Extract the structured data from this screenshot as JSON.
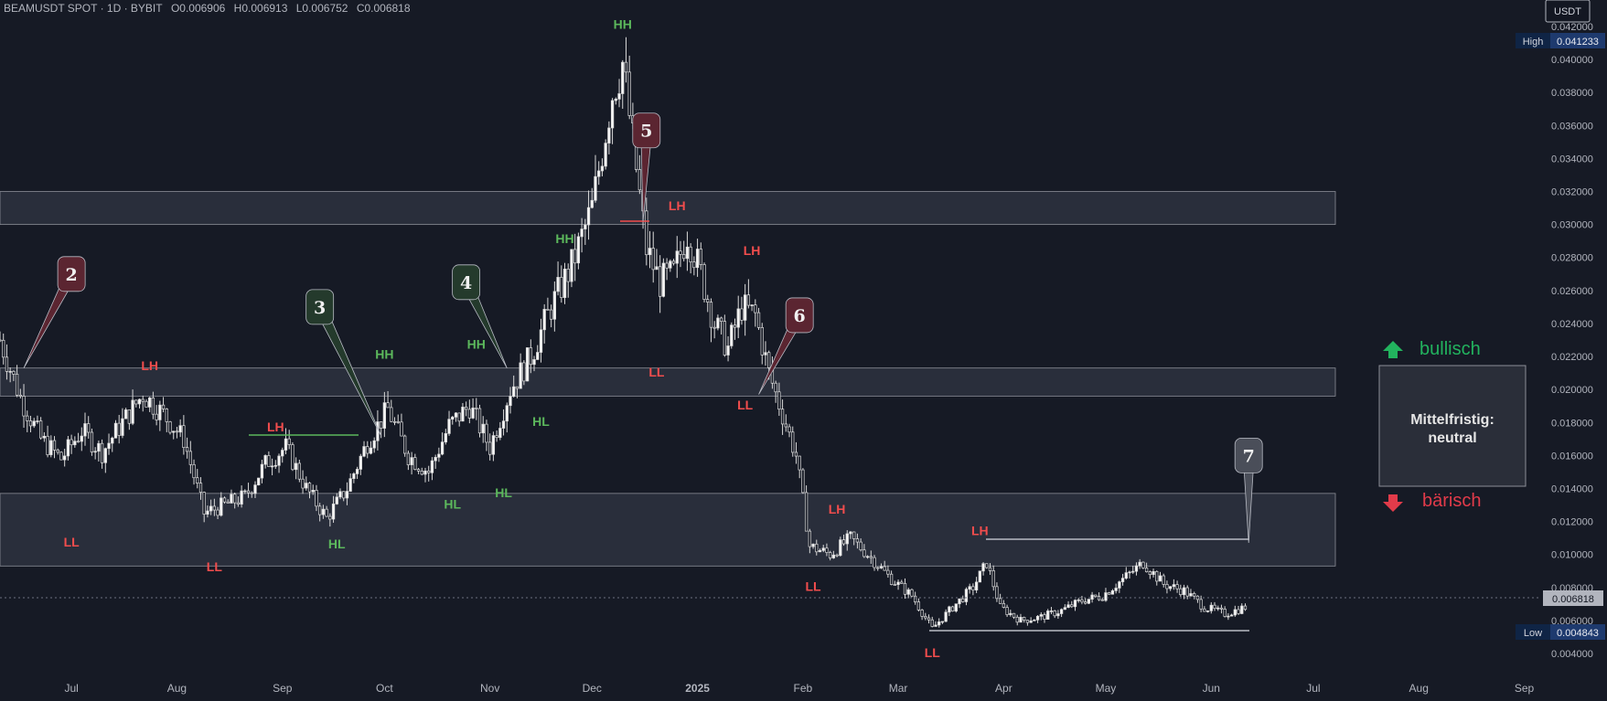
{
  "header": {
    "symbol": "BEAMUSDT SPOT · 1D · BYBIT",
    "open": "O0.006906",
    "high": "H0.006913",
    "low": "L0.006752",
    "close": "C0.006818"
  },
  "currency_label": "USDT",
  "price_badges": {
    "high_label": "High",
    "high_value": "0.041233",
    "low_label": "Low",
    "low_value": "0.004843",
    "last_value": "0.006818"
  },
  "legend_box": {
    "bullish_label": "bullisch",
    "bearish_label": "bärisch",
    "status": "Mittelfristig: neutral"
  },
  "colors": {
    "background": "#161a25",
    "candle": "#d9d9d9",
    "zone": "#3a3f4f",
    "higher_swing": "#5cb85c",
    "lower_swing": "#f24d4d",
    "callout_red": "#5b2531",
    "callout_green": "#243a2c",
    "callout_gray": "#4a4e59"
  },
  "chart_data": {
    "type": "candlestick",
    "title": "BEAMUSDT SPOT · 1D · BYBIT",
    "ylabel": "USDT",
    "ylim": [
      0.0035,
      0.0425
    ],
    "y_ticks": [
      "0.004000",
      "0.006000",
      "0.008000",
      "0.010000",
      "0.012000",
      "0.014000",
      "0.016000",
      "0.018000",
      "0.020000",
      "0.022000",
      "0.024000",
      "0.026000",
      "0.028000",
      "0.030000",
      "0.032000",
      "0.034000",
      "0.036000",
      "0.038000",
      "0.040000",
      "0.042000"
    ],
    "x_ticks": [
      "Jul",
      "Aug",
      "Sep",
      "Oct",
      "Nov",
      "Dec",
      "2025",
      "Feb",
      "Mar",
      "Apr",
      "May",
      "Jun",
      "Jul",
      "Aug",
      "Sep"
    ],
    "x_range": [
      "2024-06-10",
      "2025-09-10"
    ],
    "series": [
      {
        "name": "BEAMUSDT",
        "x": [
          "2024-06-10",
          "2024-06-16",
          "2024-06-22",
          "2024-06-28",
          "2024-07-04",
          "2024-07-10",
          "2024-07-16",
          "2024-07-22",
          "2024-07-28",
          "2024-08-03",
          "2024-08-09",
          "2024-08-15",
          "2024-08-21",
          "2024-08-27",
          "2024-09-02",
          "2024-09-08",
          "2024-09-14",
          "2024-09-20",
          "2024-09-26",
          "2024-10-02",
          "2024-10-08",
          "2024-10-14",
          "2024-10-20",
          "2024-10-26",
          "2024-11-01",
          "2024-11-07",
          "2024-11-13",
          "2024-11-19",
          "2024-11-25",
          "2024-12-01",
          "2024-12-04",
          "2024-12-07",
          "2024-12-10",
          "2024-12-13",
          "2024-12-17",
          "2024-12-21",
          "2024-12-25",
          "2024-12-29",
          "2025-01-02",
          "2025-01-06",
          "2025-01-10",
          "2025-01-14",
          "2025-01-18",
          "2025-01-22",
          "2025-01-26",
          "2025-01-30",
          "2025-02-03",
          "2025-02-09",
          "2025-02-15",
          "2025-02-21",
          "2025-02-27",
          "2025-03-05",
          "2025-03-11",
          "2025-03-17",
          "2025-03-23",
          "2025-03-27",
          "2025-03-31",
          "2025-04-06",
          "2025-04-12",
          "2025-04-18",
          "2025-04-24",
          "2025-04-30",
          "2025-05-06",
          "2025-05-12",
          "2025-05-18",
          "2025-05-24",
          "2025-05-30",
          "2025-06-05",
          "2025-06-11"
        ],
        "close": [
          0.023,
          0.0195,
          0.017,
          0.0158,
          0.0175,
          0.0162,
          0.018,
          0.0197,
          0.0185,
          0.017,
          0.0125,
          0.013,
          0.0135,
          0.0155,
          0.0165,
          0.014,
          0.0122,
          0.014,
          0.0168,
          0.0188,
          0.016,
          0.015,
          0.0178,
          0.019,
          0.0165,
          0.02,
          0.022,
          0.025,
          0.0275,
          0.031,
          0.0345,
          0.038,
          0.0398,
          0.035,
          0.0285,
          0.0265,
          0.027,
          0.0295,
          0.027,
          0.024,
          0.0225,
          0.025,
          0.0245,
          0.021,
          0.0185,
          0.016,
          0.0105,
          0.01,
          0.011,
          0.0098,
          0.0085,
          0.0075,
          0.0055,
          0.0068,
          0.008,
          0.0095,
          0.0068,
          0.006,
          0.0062,
          0.0066,
          0.0072,
          0.0075,
          0.0085,
          0.0095,
          0.0082,
          0.0078,
          0.0068,
          0.0064,
          0.0068
        ]
      }
    ],
    "zones": [
      {
        "low": 0.03,
        "high": 0.032
      },
      {
        "low": 0.0196,
        "high": 0.0213
      },
      {
        "low": 0.0093,
        "high": 0.0137
      }
    ],
    "swing_labels": [
      {
        "text": "LL",
        "date": "2024-07-01",
        "price": 0.0117,
        "pos": "below",
        "kind": "lower"
      },
      {
        "text": "LH",
        "date": "2024-07-24",
        "price": 0.0205,
        "pos": "above",
        "kind": "lower"
      },
      {
        "text": "LL",
        "date": "2024-08-12",
        "price": 0.0102,
        "pos": "below",
        "kind": "lower"
      },
      {
        "text": "LH",
        "date": "2024-08-30",
        "price": 0.0168,
        "pos": "above",
        "kind": "lower"
      },
      {
        "text": "HL",
        "date": "2024-09-17",
        "price": 0.0116,
        "pos": "below",
        "kind": "higher"
      },
      {
        "text": "HH",
        "date": "2024-10-01",
        "price": 0.0212,
        "pos": "above",
        "kind": "higher"
      },
      {
        "text": "HL",
        "date": "2024-10-21",
        "price": 0.014,
        "pos": "below",
        "kind": "higher"
      },
      {
        "text": "HH",
        "date": "2024-10-28",
        "price": 0.0218,
        "pos": "above",
        "kind": "higher"
      },
      {
        "text": "HL",
        "date": "2024-11-05",
        "price": 0.0147,
        "pos": "below",
        "kind": "higher"
      },
      {
        "text": "HL",
        "date": "2024-11-16",
        "price": 0.019,
        "pos": "below",
        "kind": "higher"
      },
      {
        "text": "HH",
        "date": "2024-11-23",
        "price": 0.0282,
        "pos": "above",
        "kind": "higher"
      },
      {
        "text": "HH",
        "date": "2024-12-10",
        "price": 0.0412,
        "pos": "above",
        "kind": "higher"
      },
      {
        "text": "LL",
        "date": "2024-12-20",
        "price": 0.022,
        "pos": "below",
        "kind": "lower"
      },
      {
        "text": "LH",
        "date": "2024-12-26",
        "price": 0.0302,
        "pos": "above",
        "kind": "lower"
      },
      {
        "text": "LH",
        "date": "2025-01-17",
        "price": 0.0275,
        "pos": "above",
        "kind": "lower"
      },
      {
        "text": "LL",
        "date": "2025-01-15",
        "price": 0.02,
        "pos": "below",
        "kind": "lower"
      },
      {
        "text": "LH",
        "date": "2025-02-11",
        "price": 0.0118,
        "pos": "above",
        "kind": "lower"
      },
      {
        "text": "LL",
        "date": "2025-02-04",
        "price": 0.009,
        "pos": "below",
        "kind": "lower"
      },
      {
        "text": "LH",
        "date": "2025-03-25",
        "price": 0.0105,
        "pos": "above",
        "kind": "lower"
      },
      {
        "text": "LL",
        "date": "2025-03-11",
        "price": 0.005,
        "pos": "below",
        "kind": "lower"
      }
    ],
    "callouts": [
      {
        "label": "2",
        "style": "red",
        "box_date": "2024-07-01",
        "box_price": 0.027,
        "tip_date": "2024-06-17",
        "tip_price": 0.0213
      },
      {
        "label": "3",
        "style": "green",
        "box_date": "2024-09-12",
        "box_price": 0.025,
        "tip_date": "2024-09-30",
        "tip_price": 0.0172
      },
      {
        "label": "4",
        "style": "green",
        "box_date": "2024-10-25",
        "box_price": 0.0265,
        "tip_date": "2024-11-06",
        "tip_price": 0.0213
      },
      {
        "label": "5",
        "style": "red",
        "box_date": "2024-12-17",
        "box_price": 0.0357,
        "tip_date": "2024-12-16",
        "tip_price": 0.0302
      },
      {
        "label": "6",
        "style": "red",
        "box_date": "2025-01-31",
        "box_price": 0.0245,
        "tip_date": "2025-01-19",
        "tip_price": 0.0197
      },
      {
        "label": "7",
        "style": "gray",
        "box_date": "2025-06-12",
        "box_price": 0.016,
        "tip_date": "2025-06-12",
        "tip_price": 0.0107
      }
    ]
  }
}
